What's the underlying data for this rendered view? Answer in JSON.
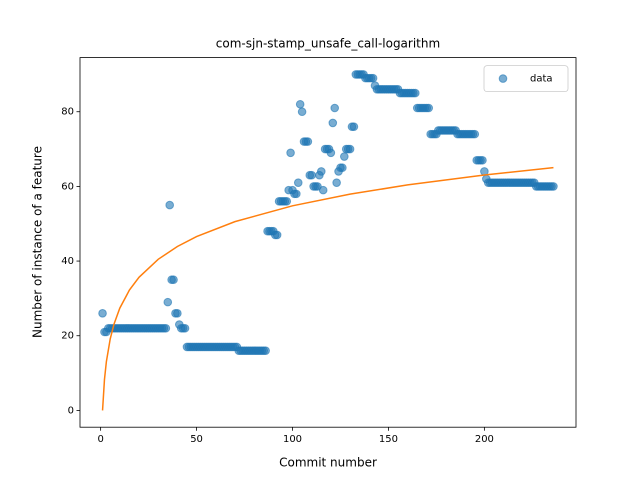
{
  "chart_data": {
    "type": "scatter",
    "title": "com-sjn-stamp_unsafe_call-logarithm",
    "xlabel": "Commit number",
    "ylabel": "Number of instance of a feature",
    "xlim": [
      -10.75,
      247.75
    ],
    "xticks": [
      0,
      50,
      100,
      150,
      200
    ],
    "ylim": [
      -4.5,
      94.5
    ],
    "yticks": [
      0,
      20,
      40,
      60,
      80
    ],
    "legend": "upper right",
    "series": [
      {
        "name": "data",
        "color": "#1f77b4",
        "x": [
          1,
          2,
          3,
          4,
          5,
          6,
          7,
          8,
          9,
          10,
          11,
          12,
          13,
          14,
          15,
          16,
          17,
          18,
          19,
          20,
          21,
          22,
          23,
          24,
          25,
          26,
          27,
          28,
          29,
          30,
          31,
          32,
          33,
          34,
          35,
          36,
          37,
          38,
          39,
          40,
          41,
          42,
          43,
          44,
          45,
          46,
          47,
          48,
          49,
          50,
          51,
          52,
          53,
          54,
          55,
          56,
          57,
          58,
          59,
          60,
          61,
          62,
          63,
          64,
          65,
          66,
          67,
          68,
          69,
          70,
          71,
          72,
          73,
          74,
          75,
          76,
          77,
          78,
          79,
          80,
          81,
          82,
          83,
          84,
          85,
          86,
          87,
          88,
          89,
          90,
          91,
          92,
          93,
          94,
          95,
          96,
          97,
          98,
          99,
          100,
          101,
          102,
          103,
          104,
          105,
          106,
          107,
          108,
          109,
          110,
          111,
          112,
          113,
          114,
          115,
          116,
          117,
          118,
          119,
          120,
          121,
          122,
          123,
          124,
          125,
          126,
          127,
          128,
          129,
          130,
          131,
          132,
          133,
          134,
          135,
          136,
          137,
          138,
          139,
          140,
          141,
          142,
          143,
          144,
          145,
          146,
          147,
          148,
          149,
          150,
          151,
          152,
          153,
          154,
          155,
          156,
          157,
          158,
          159,
          160,
          161,
          162,
          163,
          164,
          165,
          166,
          167,
          168,
          169,
          170,
          171,
          172,
          173,
          174,
          175,
          176,
          177,
          178,
          179,
          180,
          181,
          182,
          183,
          184,
          185,
          186,
          187,
          188,
          189,
          190,
          191,
          192,
          193,
          194,
          195,
          196,
          197,
          198,
          199,
          200,
          201,
          202,
          203,
          204,
          205,
          206,
          207,
          208,
          209,
          210,
          211,
          212,
          213,
          214,
          215,
          216,
          217,
          218,
          219,
          220,
          221,
          222,
          223,
          224,
          225,
          226,
          227,
          228,
          229,
          230,
          231,
          232,
          233,
          234,
          235,
          236
        ],
        "values": [
          26,
          21,
          21,
          22,
          22,
          22,
          22,
          22,
          22,
          22,
          22,
          22,
          22,
          22,
          22,
          22,
          22,
          22,
          22,
          22,
          22,
          22,
          22,
          22,
          22,
          22,
          22,
          22,
          22,
          22,
          22,
          22,
          22,
          22,
          29,
          55,
          35,
          35,
          26,
          26,
          23,
          22,
          22,
          22,
          17,
          17,
          17,
          17,
          17,
          17,
          17,
          17,
          17,
          17,
          17,
          17,
          17,
          17,
          17,
          17,
          17,
          17,
          17,
          17,
          17,
          17,
          17,
          17,
          17,
          17,
          17,
          16,
          16,
          16,
          16,
          16,
          16,
          16,
          16,
          16,
          16,
          16,
          16,
          16,
          16,
          16,
          48,
          48,
          48,
          48,
          47,
          47,
          56,
          56,
          56,
          56,
          56,
          59,
          69,
          59,
          58,
          58,
          61,
          82,
          80,
          72,
          72,
          72,
          63,
          63,
          60,
          60,
          60,
          63,
          64,
          59,
          70,
          70,
          70,
          69,
          77,
          81,
          61,
          64,
          65,
          65,
          68,
          70,
          70,
          70,
          76,
          76,
          90,
          90,
          90,
          90,
          90,
          89,
          89,
          89,
          89,
          89,
          87,
          86,
          86,
          86,
          86,
          86,
          86,
          86,
          86,
          86,
          86,
          86,
          86,
          85,
          85,
          85,
          85,
          85,
          85,
          85,
          85,
          85,
          81,
          81,
          81,
          81,
          81,
          81,
          81,
          74,
          74,
          74,
          74,
          75,
          75,
          75,
          75,
          75,
          75,
          75,
          75,
          75,
          75,
          74,
          74,
          74,
          74,
          74,
          74,
          74,
          74,
          74,
          74,
          67,
          67,
          67,
          67,
          64,
          62,
          61,
          61,
          61,
          61,
          61,
          61,
          61,
          61,
          61,
          61,
          61,
          61,
          61,
          61,
          61,
          61,
          61,
          61,
          61,
          61,
          61,
          61,
          61,
          61,
          61,
          60,
          60,
          60,
          60,
          60,
          60,
          60,
          60,
          60,
          60
        ]
      }
    ],
    "fit": {
      "color": "#ff7f0e",
      "x": [
        1,
        2,
        3,
        5,
        7,
        10,
        15,
        20,
        30,
        40,
        50,
        70,
        100,
        130,
        160,
        200,
        236
      ],
      "values": [
        0,
        8.25,
        13.07,
        19.15,
        23.16,
        27.4,
        32.23,
        35.65,
        40.47,
        43.9,
        46.55,
        50.56,
        54.8,
        57.92,
        60.4,
        63.05,
        65.02
      ]
    }
  }
}
